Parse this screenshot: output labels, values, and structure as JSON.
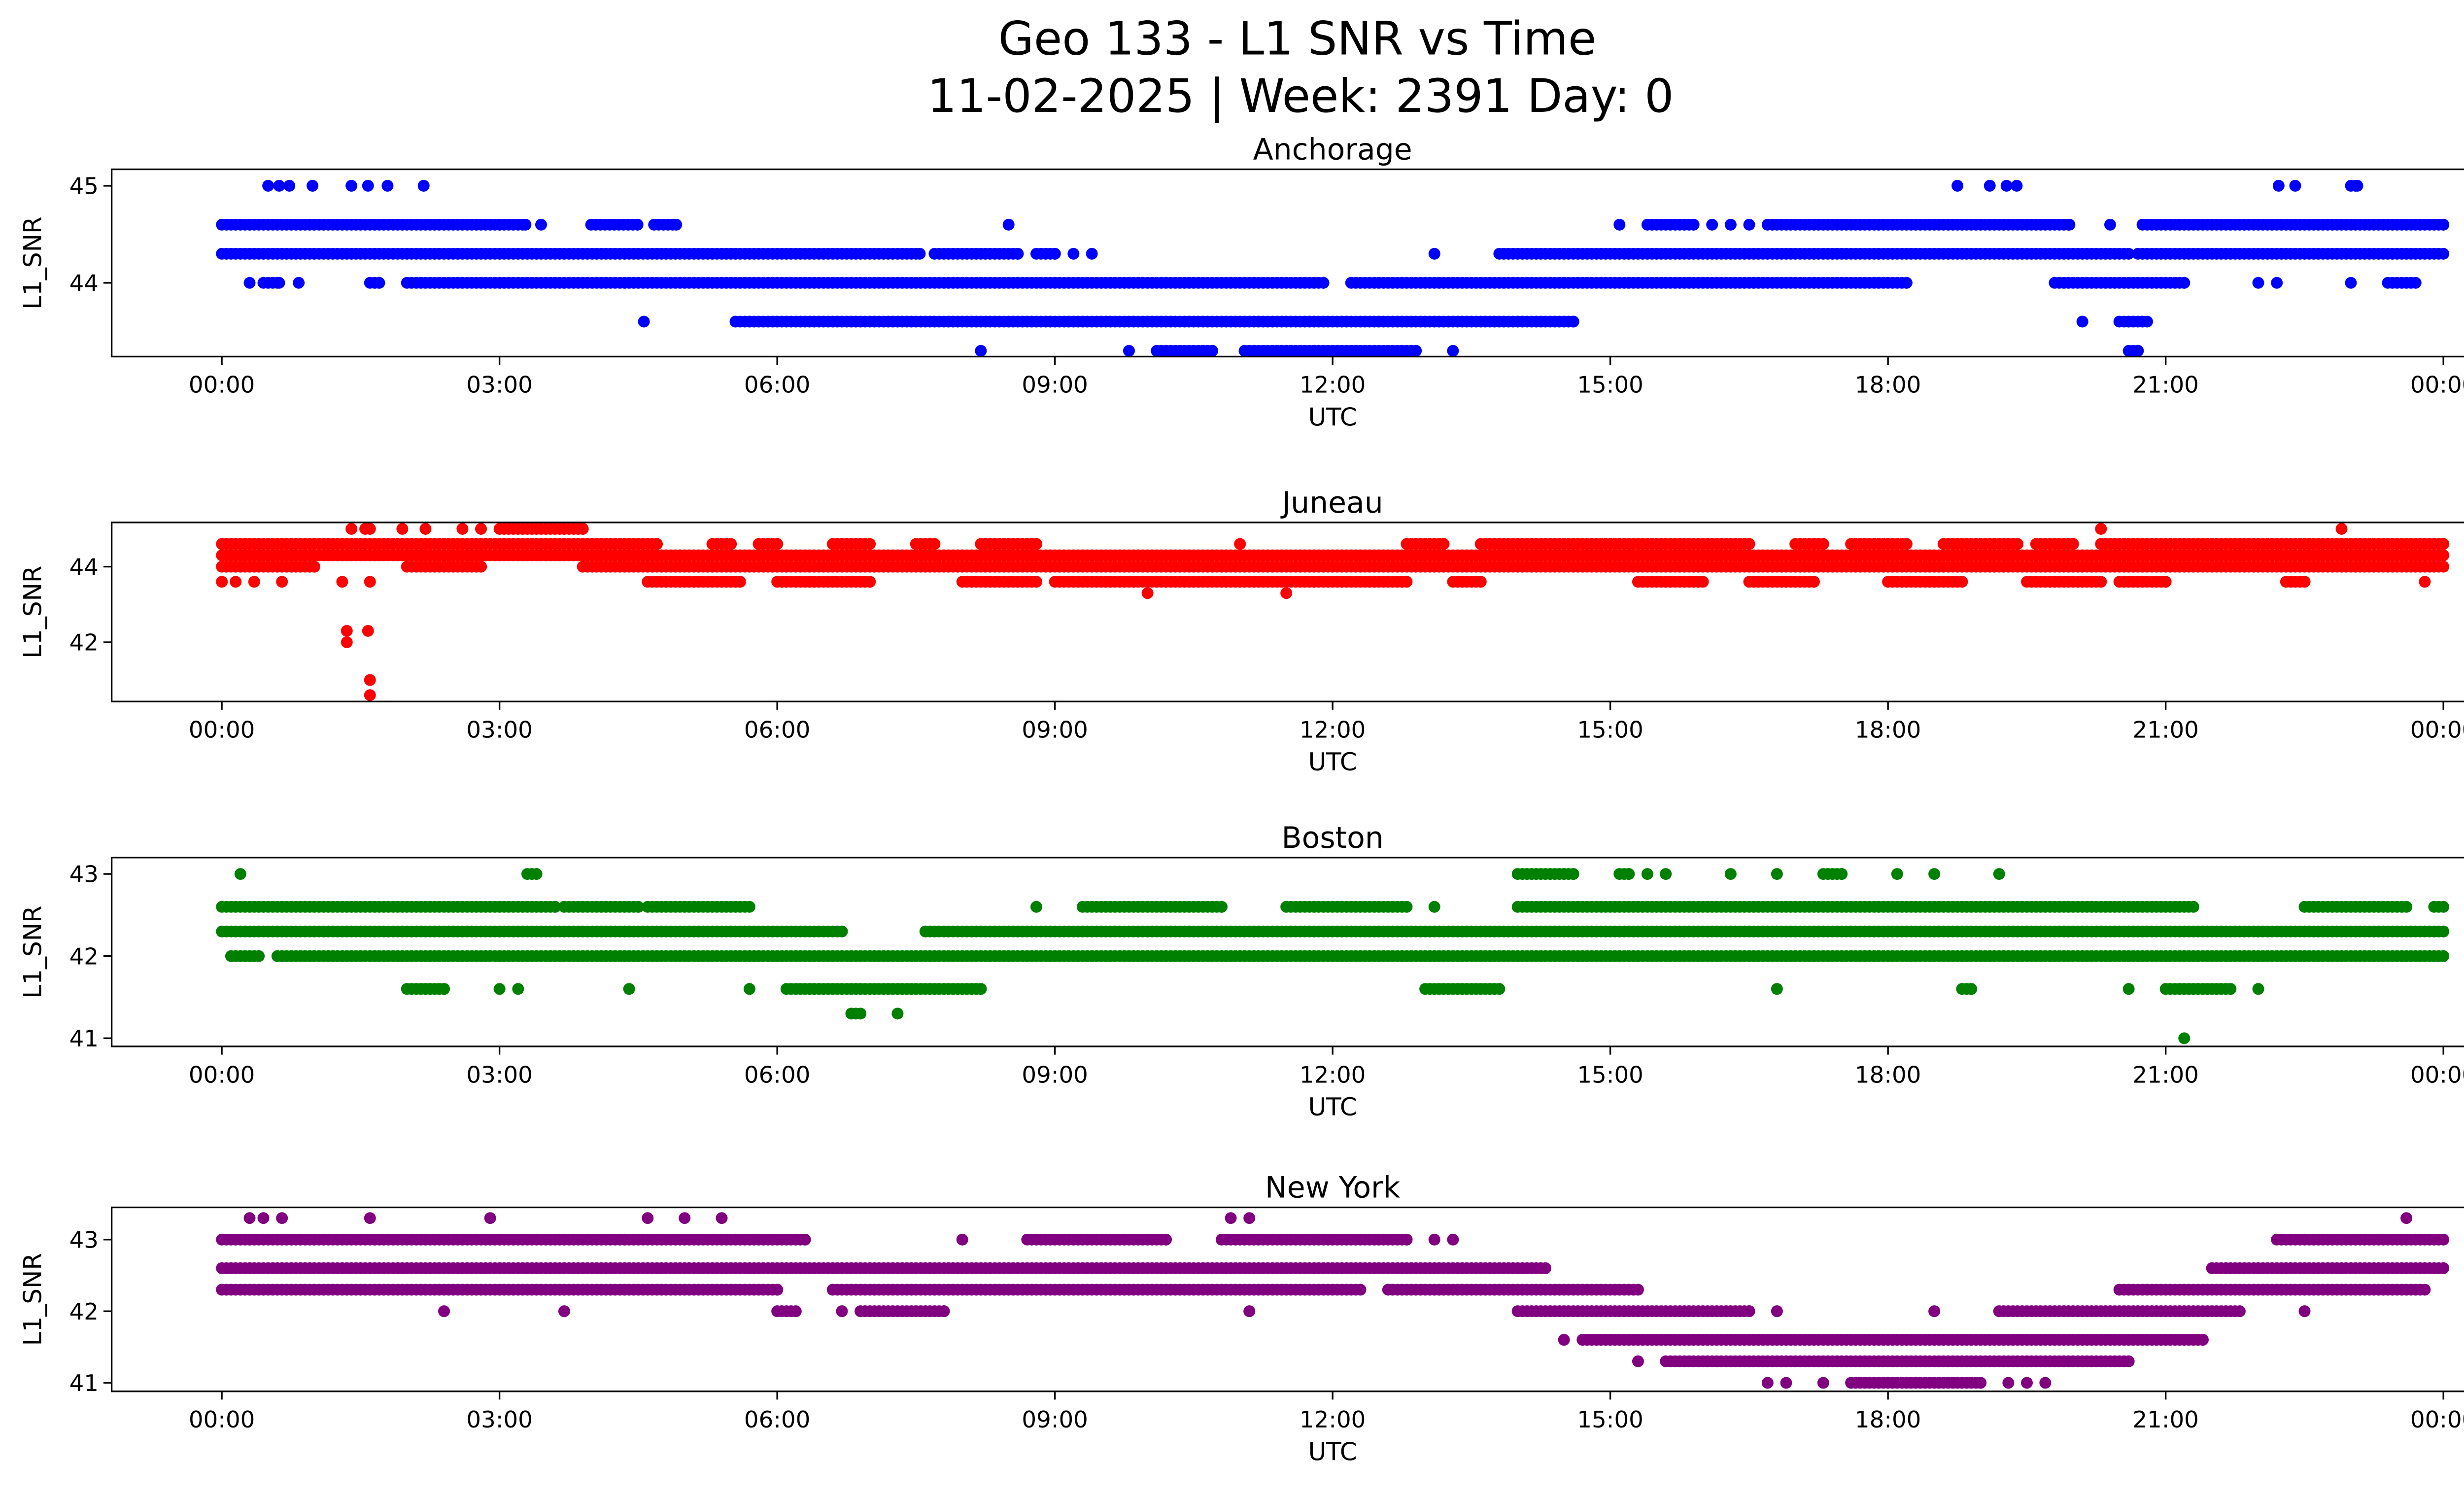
{
  "title_line1": "Geo 133 - L1 SNR vs Time",
  "title_line2": "11-02-2025 | Week: 2391 Day: 0",
  "chart_data": [
    {
      "type": "scatter",
      "title": "Anchorage",
      "xlabel": "UTC",
      "ylabel": "L1_SNR",
      "color": "#0000ff",
      "xlim": [
        -1.19,
        25.19
      ],
      "ylim": [
        43.24,
        45.17
      ],
      "xticks": [
        0,
        3,
        6,
        9,
        12,
        15,
        18,
        21,
        24
      ],
      "xtick_labels": [
        "00:00",
        "03:00",
        "06:00",
        "09:00",
        "12:00",
        "15:00",
        "18:00",
        "21:00",
        "00:00"
      ],
      "yticks": [
        44,
        45
      ],
      "ytick_labels": [
        "44",
        "45"
      ],
      "levels": [
        {
          "y": 45.0,
          "runs": [
            [
              0.5,
              0.5
            ],
            [
              0.62,
              0.62
            ],
            [
              0.73,
              0.73
            ],
            [
              0.98,
              0.98
            ],
            [
              1.4,
              1.4
            ],
            [
              1.58,
              1.58
            ],
            [
              1.79,
              1.79
            ],
            [
              2.18,
              2.18
            ],
            [
              18.75,
              18.75
            ],
            [
              19.1,
              19.1
            ],
            [
              19.28,
              19.28
            ],
            [
              19.39,
              19.39
            ],
            [
              22.22,
              22.22
            ],
            [
              22.4,
              22.4
            ],
            [
              23.0,
              23.07
            ]
          ]
        },
        {
          "y": 44.6,
          "runs": [
            [
              0,
              3.28
            ],
            [
              3.45,
              3.45
            ],
            [
              3.99,
              4.49
            ],
            [
              4.67,
              4.91
            ],
            [
              8.5,
              8.5
            ],
            [
              15.1,
              15.1
            ],
            [
              15.4,
              15.9
            ],
            [
              16.1,
              16.1
            ],
            [
              16.3,
              16.3
            ],
            [
              16.5,
              16.5
            ],
            [
              16.7,
              19.96
            ],
            [
              20.4,
              20.4
            ],
            [
              20.75,
              24
            ]
          ]
        },
        {
          "y": 44.3,
          "runs": [
            [
              0,
              7.54
            ],
            [
              7.7,
              8.6
            ],
            [
              8.8,
              9.0
            ],
            [
              9.2,
              9.2
            ],
            [
              9.4,
              9.4
            ],
            [
              13.1,
              13.1
            ],
            [
              13.8,
              20.6
            ],
            [
              20.7,
              24
            ]
          ]
        },
        {
          "y": 44.0,
          "runs": [
            [
              0.3,
              0.3
            ],
            [
              0.45,
              0.62
            ],
            [
              0.83,
              0.83
            ],
            [
              1.6,
              1.7
            ],
            [
              2.0,
              11.9
            ],
            [
              12.2,
              18.2
            ],
            [
              19.8,
              21.2
            ],
            [
              22.0,
              22.0
            ],
            [
              22.2,
              22.2
            ],
            [
              23.0,
              23.0
            ],
            [
              23.4,
              23.7
            ]
          ]
        },
        {
          "y": 43.6,
          "runs": [
            [
              4.56,
              4.56
            ],
            [
              5.55,
              5.7
            ],
            [
              5.75,
              14.6
            ],
            [
              20.1,
              20.1
            ],
            [
              20.5,
              20.8
            ]
          ]
        },
        {
          "y": 43.3,
          "runs": [
            [
              8.2,
              8.2
            ],
            [
              9.8,
              9.8
            ],
            [
              10.1,
              10.7
            ],
            [
              11.05,
              12.9
            ],
            [
              13.3,
              13.3
            ],
            [
              20.6,
              20.7
            ]
          ]
        }
      ]
    },
    {
      "type": "scatter",
      "title": "Juneau",
      "xlabel": "UTC",
      "ylabel": "L1_SNR",
      "color": "#ff0000",
      "xlim": [
        -1.19,
        25.19
      ],
      "ylim": [
        40.43,
        45.17
      ],
      "xticks": [
        0,
        3,
        6,
        9,
        12,
        15,
        18,
        21,
        24
      ],
      "xtick_labels": [
        "00:00",
        "03:00",
        "06:00",
        "09:00",
        "12:00",
        "15:00",
        "18:00",
        "21:00",
        "00:00"
      ],
      "yticks": [
        42,
        44
      ],
      "ytick_labels": [
        "42",
        "44"
      ],
      "levels": [
        {
          "y": 45.0,
          "runs": [
            [
              1.4,
              1.4
            ],
            [
              1.55,
              1.6
            ],
            [
              1.95,
              1.95
            ],
            [
              2.2,
              2.2
            ],
            [
              2.6,
              2.6
            ],
            [
              2.8,
              2.8
            ],
            [
              3.0,
              3.9
            ],
            [
              20.3,
              20.3
            ],
            [
              22.9,
              22.9
            ]
          ]
        },
        {
          "y": 44.6,
          "runs": [
            [
              0,
              4.7
            ],
            [
              5.3,
              5.5
            ],
            [
              5.8,
              6.0
            ],
            [
              6.6,
              7.0
            ],
            [
              7.5,
              7.7
            ],
            [
              8.2,
              8.8
            ],
            [
              11.0,
              11.0
            ],
            [
              12.8,
              13.2
            ],
            [
              13.6,
              16.5
            ],
            [
              17.0,
              17.3
            ],
            [
              17.6,
              18.2
            ],
            [
              18.6,
              19.4
            ],
            [
              19.6,
              20.0
            ],
            [
              20.3,
              24
            ]
          ]
        },
        {
          "y": 44.3,
          "runs": [
            [
              0,
              24
            ]
          ]
        },
        {
          "y": 44.0,
          "runs": [
            [
              0,
              1.0
            ],
            [
              2.0,
              2.8
            ],
            [
              3.9,
              24
            ]
          ]
        },
        {
          "y": 43.6,
          "runs": [
            [
              0,
              0
            ],
            [
              0.15,
              0.15
            ],
            [
              0.35,
              0.35
            ],
            [
              0.65,
              0.65
            ],
            [
              1.3,
              1.3
            ],
            [
              1.6,
              1.6
            ],
            [
              4.6,
              5.6
            ],
            [
              6.0,
              7.0
            ],
            [
              8.0,
              8.8
            ],
            [
              9.0,
              12.8
            ],
            [
              13.3,
              13.6
            ],
            [
              15.3,
              16.0
            ],
            [
              16.5,
              17.2
            ],
            [
              18.0,
              18.8
            ],
            [
              19.5,
              20.3
            ],
            [
              20.5,
              21.0
            ],
            [
              22.3,
              22.5
            ],
            [
              23.8,
              23.8
            ]
          ]
        },
        {
          "y": 43.3,
          "runs": [
            [
              10.0,
              10.0
            ],
            [
              11.5,
              11.5
            ]
          ]
        },
        {
          "y": 42.3,
          "runs": [
            [
              1.35,
              1.35
            ],
            [
              1.58,
              1.58
            ]
          ]
        },
        {
          "y": 42.0,
          "runs": [
            [
              1.35,
              1.35
            ]
          ]
        },
        {
          "y": 41.0,
          "runs": [
            [
              1.6,
              1.6
            ]
          ]
        },
        {
          "y": 40.6,
          "runs": [
            [
              1.6,
              1.6
            ]
          ]
        }
      ]
    },
    {
      "type": "scatter",
      "title": "Boston",
      "xlabel": "UTC",
      "ylabel": "L1_SNR",
      "color": "#008000",
      "xlim": [
        -1.19,
        25.19
      ],
      "ylim": [
        40.9,
        43.2
      ],
      "xticks": [
        0,
        3,
        6,
        9,
        12,
        15,
        18,
        21,
        24
      ],
      "xtick_labels": [
        "00:00",
        "03:00",
        "06:00",
        "09:00",
        "12:00",
        "15:00",
        "18:00",
        "21:00",
        "00:00"
      ],
      "yticks": [
        41,
        42,
        43
      ],
      "ytick_labels": [
        "41",
        "42",
        "43"
      ],
      "levels": [
        {
          "y": 43.0,
          "runs": [
            [
              0.2,
              0.2
            ],
            [
              3.3,
              3.4
            ],
            [
              14.0,
              14.6
            ],
            [
              15.1,
              15.2
            ],
            [
              15.4,
              15.4
            ],
            [
              15.6,
              15.6
            ],
            [
              16.3,
              16.3
            ],
            [
              16.8,
              16.8
            ],
            [
              17.3,
              17.5
            ],
            [
              18.1,
              18.1
            ],
            [
              18.5,
              18.5
            ],
            [
              19.2,
              19.2
            ]
          ]
        },
        {
          "y": 42.6,
          "runs": [
            [
              0,
              3.6
            ],
            [
              3.7,
              4.5
            ],
            [
              4.6,
              5.7
            ],
            [
              8.8,
              8.8
            ],
            [
              9.3,
              10.8
            ],
            [
              11.5,
              12.8
            ],
            [
              13.1,
              13.1
            ],
            [
              14.0,
              21.3
            ],
            [
              22.5,
              23.6
            ],
            [
              23.9,
              24
            ]
          ]
        },
        {
          "y": 42.3,
          "runs": [
            [
              0,
              6.7
            ],
            [
              7.6,
              24
            ]
          ]
        },
        {
          "y": 42.0,
          "runs": [
            [
              0.1,
              0.4
            ],
            [
              0.6,
              24
            ]
          ]
        },
        {
          "y": 41.6,
          "runs": [
            [
              2.0,
              2.4
            ],
            [
              3.0,
              3.0
            ],
            [
              3.2,
              3.2
            ],
            [
              4.4,
              4.4
            ],
            [
              5.7,
              5.7
            ],
            [
              6.1,
              8.2
            ],
            [
              13.0,
              13.8
            ],
            [
              16.8,
              16.8
            ],
            [
              18.8,
              18.9
            ],
            [
              20.6,
              20.6
            ],
            [
              21.0,
              21.7
            ],
            [
              22.0,
              22.0
            ]
          ]
        },
        {
          "y": 41.3,
          "runs": [
            [
              6.8,
              6.9
            ],
            [
              7.3,
              7.3
            ]
          ]
        },
        {
          "y": 41.0,
          "runs": [
            [
              21.2,
              21.2
            ]
          ]
        }
      ]
    },
    {
      "type": "scatter",
      "title": "New York",
      "xlabel": "UTC",
      "ylabel": "L1_SNR",
      "color": "#800080",
      "xlim": [
        -1.19,
        25.19
      ],
      "ylim": [
        40.88,
        43.45
      ],
      "xticks": [
        0,
        3,
        6,
        9,
        12,
        15,
        18,
        21,
        24
      ],
      "xtick_labels": [
        "00:00",
        "03:00",
        "06:00",
        "09:00",
        "12:00",
        "15:00",
        "18:00",
        "21:00",
        "00:00"
      ],
      "yticks": [
        41,
        42,
        43
      ],
      "ytick_labels": [
        "41",
        "42",
        "43"
      ],
      "levels": [
        {
          "y": 43.3,
          "runs": [
            [
              0.3,
              0.3
            ],
            [
              0.45,
              0.45
            ],
            [
              0.65,
              0.65
            ],
            [
              1.6,
              1.6
            ],
            [
              2.9,
              2.9
            ],
            [
              4.6,
              4.6
            ],
            [
              5.0,
              5.0
            ],
            [
              5.4,
              5.4
            ],
            [
              10.9,
              10.9
            ],
            [
              11.1,
              11.1
            ],
            [
              23.6,
              23.6
            ]
          ]
        },
        {
          "y": 43.0,
          "runs": [
            [
              0,
              6.3
            ],
            [
              8.0,
              8.0
            ],
            [
              8.7,
              10.2
            ],
            [
              10.8,
              12.8
            ],
            [
              13.1,
              13.1
            ],
            [
              13.3,
              13.3
            ],
            [
              22.2,
              24
            ]
          ]
        },
        {
          "y": 42.6,
          "runs": [
            [
              0,
              14.3
            ],
            [
              21.5,
              24
            ]
          ]
        },
        {
          "y": 42.3,
          "runs": [
            [
              0,
              6.0
            ],
            [
              6.6,
              12.3
            ],
            [
              12.6,
              15.3
            ],
            [
              20.5,
              23.8
            ]
          ]
        },
        {
          "y": 42.0,
          "runs": [
            [
              2.4,
              2.4
            ],
            [
              3.7,
              3.7
            ],
            [
              6.0,
              6.2
            ],
            [
              6.7,
              6.7
            ],
            [
              6.9,
              7.8
            ],
            [
              11.1,
              11.1
            ],
            [
              14.0,
              16.5
            ],
            [
              16.8,
              16.8
            ],
            [
              18.5,
              18.5
            ],
            [
              19.2,
              21.8
            ],
            [
              22.5,
              22.5
            ]
          ]
        },
        {
          "y": 41.6,
          "runs": [
            [
              14.5,
              14.5
            ],
            [
              14.7,
              21.4
            ]
          ]
        },
        {
          "y": 41.3,
          "runs": [
            [
              15.3,
              15.3
            ],
            [
              15.6,
              20.6
            ]
          ]
        },
        {
          "y": 41.0,
          "runs": [
            [
              16.7,
              16.7
            ],
            [
              16.9,
              16.9
            ],
            [
              17.3,
              17.3
            ],
            [
              17.6,
              19.0
            ],
            [
              19.3,
              19.3
            ],
            [
              19.5,
              19.5
            ],
            [
              19.7,
              19.7
            ]
          ]
        }
      ]
    }
  ]
}
